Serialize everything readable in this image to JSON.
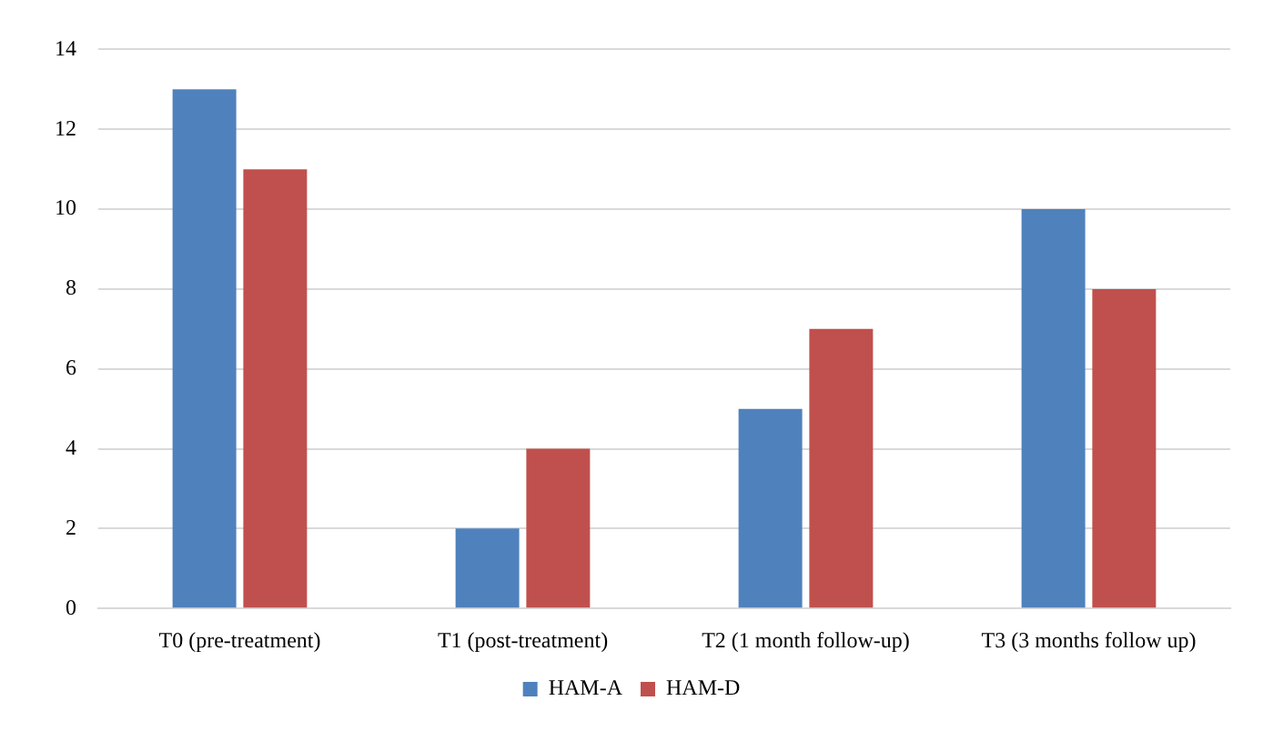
{
  "chart_data": {
    "type": "bar",
    "categories": [
      "T0 (pre-treatment)",
      "T1 (post-treatment)",
      "T2 (1 month follow-up)",
      "T3 (3 months follow up)"
    ],
    "series": [
      {
        "name": "HAM-A",
        "color": "#4f81bd",
        "values": [
          13,
          2,
          5,
          10
        ]
      },
      {
        "name": "HAM-D",
        "color": "#c0504d",
        "values": [
          11,
          4,
          7,
          8
        ]
      }
    ],
    "ylim": [
      0,
      14
    ],
    "yticks": [
      0,
      2,
      4,
      6,
      8,
      10,
      12,
      14
    ],
    "grid": "y",
    "legend": "bottom"
  }
}
